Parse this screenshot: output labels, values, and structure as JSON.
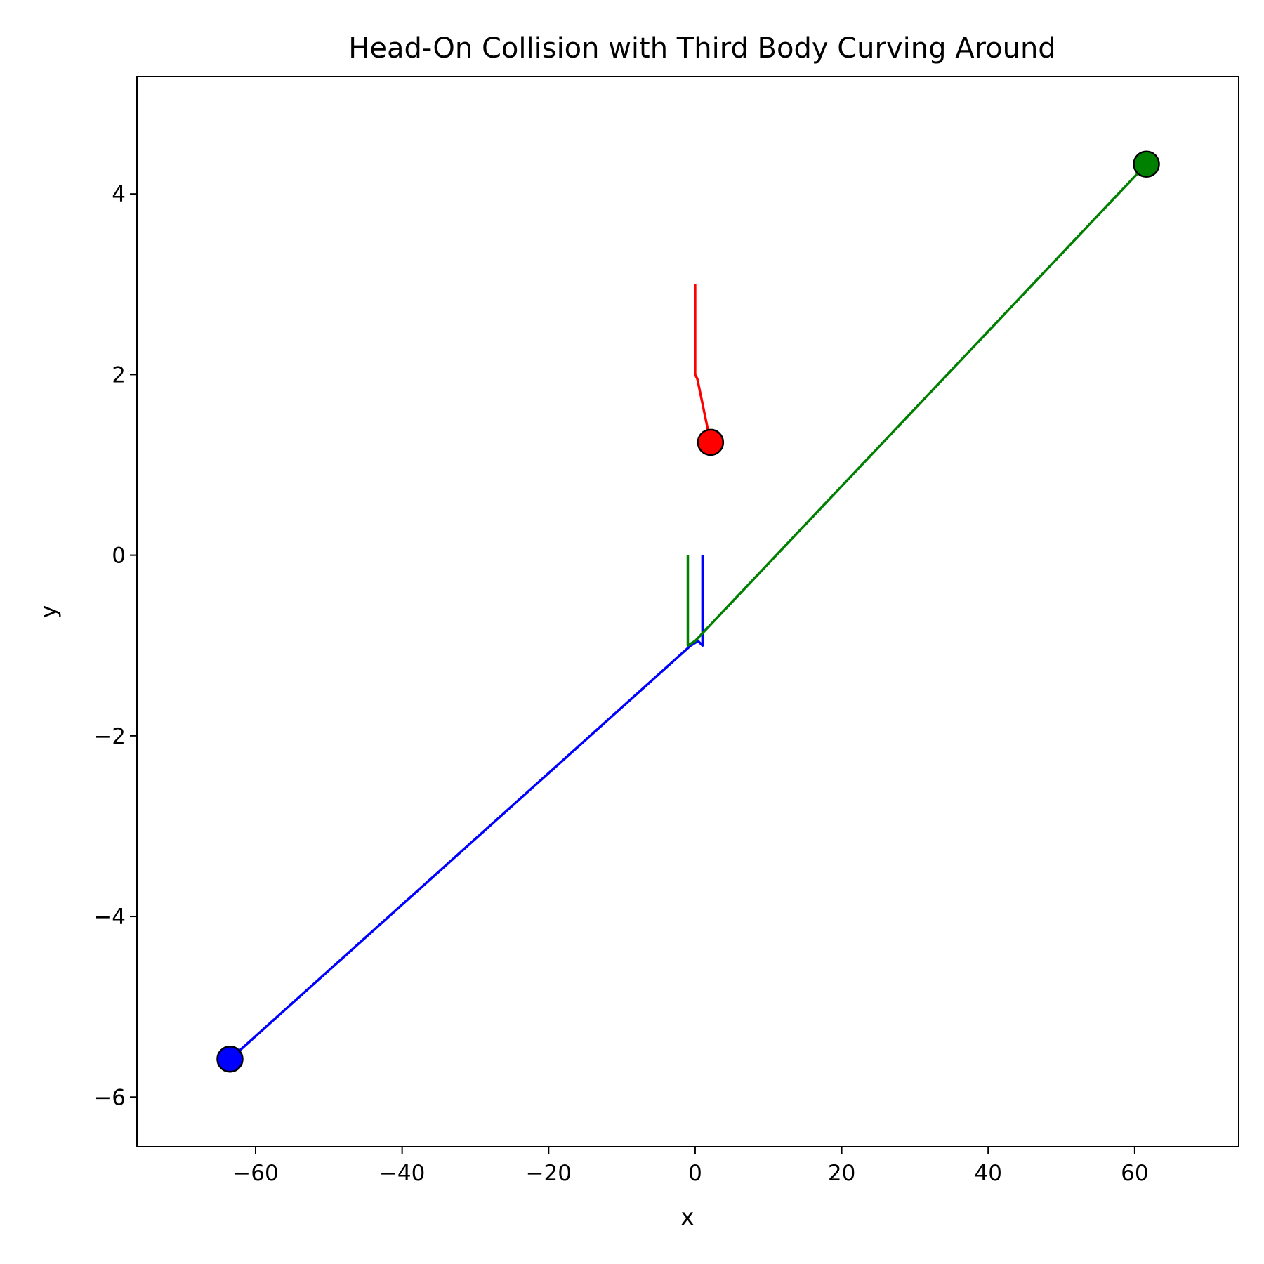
{
  "chart_data": {
    "type": "line",
    "title": "Head-On Collision with Third Body Curving Around",
    "xlabel": "x",
    "ylabel": "y",
    "xlim": [
      -76.2,
      74.2
    ],
    "ylim": [
      -6.55,
      5.3
    ],
    "x_ticks": [
      -60,
      -40,
      -20,
      0,
      20,
      40,
      60
    ],
    "y_ticks": [
      -6,
      -4,
      -2,
      0,
      2,
      4
    ],
    "grid": false,
    "series": [
      {
        "color": "#0000ff",
        "x": [
          1.0,
          1.0,
          0.4,
          -0.6,
          -63.5
        ],
        "y": [
          0.0,
          -1.0,
          -0.95,
          -1.0,
          -5.58
        ],
        "final": [
          -63.5,
          -5.58
        ]
      },
      {
        "color": "#008000",
        "x": [
          -1.0,
          -1.0,
          0.0,
          61.6
        ],
        "y": [
          0.0,
          -1.0,
          -0.95,
          4.33
        ],
        "final": [
          61.6,
          4.33
        ]
      },
      {
        "color": "#ff0000",
        "x": [
          0.0,
          0.0,
          0.3,
          2.1
        ],
        "y": [
          3.0,
          2.0,
          1.95,
          1.25
        ],
        "final": [
          2.1,
          1.25
        ]
      }
    ]
  }
}
